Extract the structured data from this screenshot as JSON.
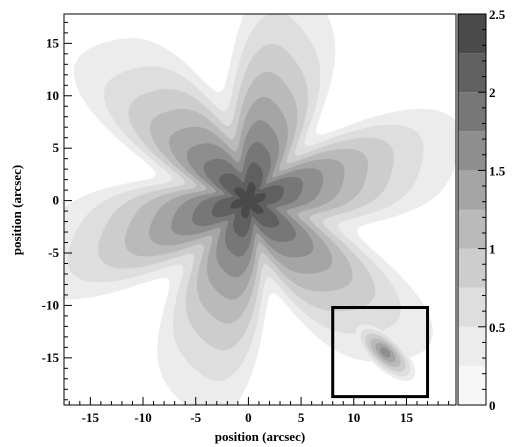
{
  "chart_data": {
    "type": "heatmap",
    "title": "",
    "xlabel": "position (arcsec)",
    "ylabel": "position (arcsec)",
    "xlim": [
      -17.5,
      19.7
    ],
    "ylim": [
      -19.5,
      17.8
    ],
    "x_ticks": [
      "-15",
      "-10",
      "-5",
      "0",
      "5",
      "10",
      "15"
    ],
    "y_ticks": [
      "15",
      "10",
      "5",
      "0",
      "-5",
      "-10",
      "-15"
    ],
    "x_tick_values": [
      -15,
      -10,
      -5,
      0,
      5,
      10,
      15
    ],
    "y_tick_values": [
      15,
      10,
      5,
      0,
      -5,
      -10,
      -15
    ],
    "colorbar": {
      "min": 0,
      "max": 2.5,
      "ticks": [
        "2.5",
        "2",
        "1.5",
        "1",
        "0.5",
        "0"
      ],
      "tick_values": [
        2.5,
        2,
        1.5,
        1,
        0.5,
        0
      ],
      "levels": [
        0,
        0.25,
        0.5,
        0.75,
        1.0,
        1.25,
        1.5,
        1.75,
        2.0,
        2.25,
        2.5
      ],
      "colors": [
        "#f7f7f7",
        "#ececec",
        "#dedede",
        "#cdcdcd",
        "#bababa",
        "#a5a5a5",
        "#8e8e8e",
        "#777777",
        "#606060",
        "#4a4a4a"
      ]
    },
    "main_source": {
      "x": 0,
      "y": 0,
      "peak": 2.5,
      "shape": "six-pointed star"
    },
    "secondary_source": {
      "x": 13,
      "y": -14.5,
      "peak": 1.5
    },
    "highlight_box": {
      "x0": 8,
      "x1": 17,
      "y0": -18.7,
      "y1": -10.2
    }
  }
}
